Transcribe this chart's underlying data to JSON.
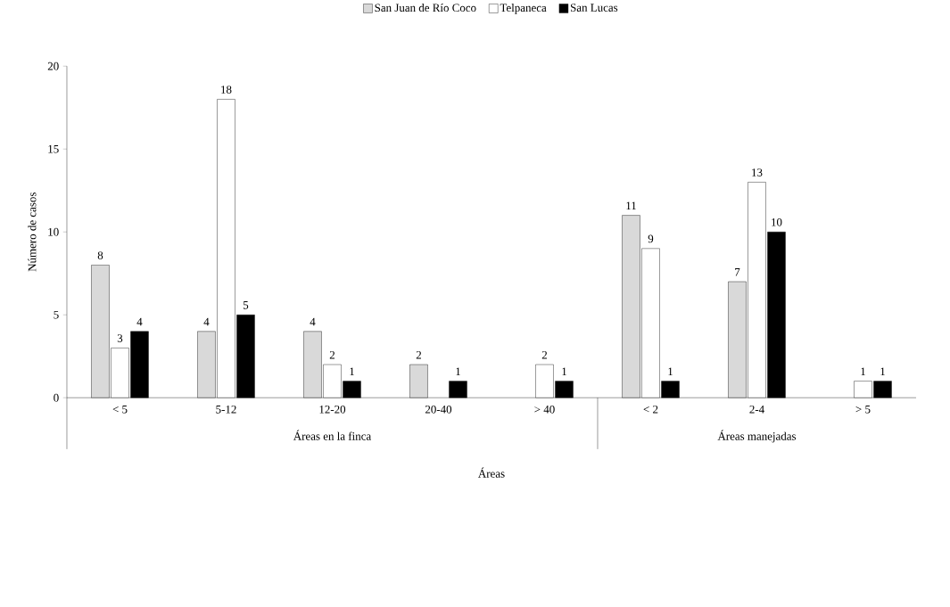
{
  "chart_data": {
    "type": "bar",
    "xlabel": "Áreas",
    "ylabel": "Número de casos",
    "categories": [
      "< 5",
      "5-12",
      "12-20",
      "20-40",
      "> 40",
      "< 2",
      "2-4",
      "> 5"
    ],
    "series": [
      {
        "name": "San Juan de Río Coco",
        "color": "#d9d9d9",
        "values": [
          8,
          4,
          4,
          2,
          null,
          11,
          7,
          null
        ]
      },
      {
        "name": "Telpaneca",
        "color": "#ffffff",
        "values": [
          3,
          18,
          2,
          null,
          2,
          9,
          13,
          1
        ]
      },
      {
        "name": "San Lucas",
        "color": "#000000",
        "values": [
          4,
          5,
          1,
          1,
          1,
          1,
          10,
          1
        ]
      }
    ],
    "annotations": [
      "Áreas en la finca",
      "Áreas manejadas"
    ],
    "ylim": [
      0,
      20
    ],
    "yticks": [
      0,
      5,
      10,
      15,
      20
    ],
    "data_labels": true,
    "legend": "top"
  }
}
